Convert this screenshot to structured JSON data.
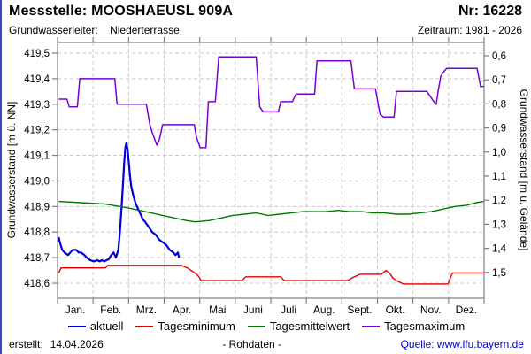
{
  "header": {
    "station_label": "Messstelle: MOOSHAEUSL 909A",
    "number_label": "Nr: 16228",
    "aquifer_label": "Grundwasserleiter:",
    "aquifer_value": "Niederterrasse",
    "period_label": "Zeitraum: 1981 - 2026"
  },
  "footer": {
    "created_label": "erstellt:",
    "created_date": "14.04.2026",
    "center_note": "- Rohdaten -",
    "source_label": "Quelle: www.lfu.bayern.de"
  },
  "colors": {
    "aktuell": "#0000dd",
    "tagesminimum": "#e60000",
    "tagesmittelwert": "#007a00",
    "tagesmaximum": "#7a00d6",
    "grid": "#c9c9c9",
    "plot_border": "#808080",
    "source_link": "#0000cc",
    "page_edge": "#4046c8"
  },
  "chart_data": {
    "type": "line",
    "title": "Messstelle: MOOSHAEUSL 909A (Nr: 16228)",
    "x_axis": {
      "months": [
        "Jan.",
        "Feb.",
        "Mrz.",
        "Apr.",
        "Mai",
        "Juni",
        "Juli",
        "Aug.",
        "Sept.",
        "Okt.",
        "Nov.",
        "Dez."
      ],
      "range_days": [
        0,
        365
      ],
      "grid": true
    },
    "left_axis": {
      "label": "Grundwasserstand [m ü. NN]",
      "tick_labels": [
        "419,5",
        "419,4",
        "419,3",
        "419,2",
        "419,1",
        "419,0",
        "418,9",
        "418,8",
        "418,7",
        "418,6"
      ],
      "tick_values": [
        419.5,
        419.4,
        419.3,
        419.2,
        419.1,
        419.0,
        418.9,
        418.8,
        418.7,
        418.6
      ],
      "range": [
        418.6,
        419.5
      ],
      "grid": true
    },
    "right_axis": {
      "label": "Grundwasserstand [m u. Gelände]",
      "tick_labels": [
        "0,6",
        "0,7",
        "0,8",
        "0,9",
        "1,0",
        "1,1",
        "1,2",
        "1,3",
        "1,4",
        "1,5"
      ],
      "grid": false
    },
    "legend_position": "bottom",
    "series": [
      {
        "name": "aktuell",
        "color": "#0000dd",
        "stroke_width": 2.2,
        "points": [
          [
            1,
            418.78
          ],
          [
            2,
            418.76
          ],
          [
            4,
            418.73
          ],
          [
            6,
            418.72
          ],
          [
            9,
            418.71
          ],
          [
            11,
            418.72
          ],
          [
            13,
            418.73
          ],
          [
            16,
            418.73
          ],
          [
            18,
            418.72
          ],
          [
            20,
            418.72
          ],
          [
            23,
            418.71
          ],
          [
            25,
            418.7
          ],
          [
            28,
            418.69
          ],
          [
            31,
            418.685
          ],
          [
            34,
            418.69
          ],
          [
            36,
            418.685
          ],
          [
            38,
            418.69
          ],
          [
            40,
            418.685
          ],
          [
            42,
            418.69
          ],
          [
            44,
            418.695
          ],
          [
            46,
            418.71
          ],
          [
            48,
            418.72
          ],
          [
            50,
            418.7
          ],
          [
            52,
            418.73
          ],
          [
            53,
            418.78
          ],
          [
            54,
            418.84
          ],
          [
            55,
            418.91
          ],
          [
            56,
            418.99
          ],
          [
            57,
            419.07
          ],
          [
            58,
            419.13
          ],
          [
            59,
            419.15
          ],
          [
            60,
            419.12
          ],
          [
            61,
            419.07
          ],
          [
            62,
            419.02
          ],
          [
            63,
            418.98
          ],
          [
            65,
            418.94
          ],
          [
            67,
            418.91
          ],
          [
            69,
            418.89
          ],
          [
            71,
            418.87
          ],
          [
            73,
            418.85
          ],
          [
            75,
            418.84
          ],
          [
            78,
            418.82
          ],
          [
            81,
            418.8
          ],
          [
            84,
            418.79
          ],
          [
            87,
            418.77
          ],
          [
            90,
            418.76
          ],
          [
            93,
            418.75
          ],
          [
            96,
            418.73
          ],
          [
            99,
            418.72
          ],
          [
            101,
            418.71
          ],
          [
            103,
            418.72
          ],
          [
            104,
            418.7
          ]
        ]
      },
      {
        "name": "Tagesminimum",
        "color": "#e60000",
        "stroke_width": 1.4,
        "points": [
          [
            1,
            418.64
          ],
          [
            3,
            418.66
          ],
          [
            41,
            418.66
          ],
          [
            43,
            418.67
          ],
          [
            106,
            418.67
          ],
          [
            111,
            418.66
          ],
          [
            116,
            418.645
          ],
          [
            119,
            418.635
          ],
          [
            121,
            418.625
          ],
          [
            123,
            418.61
          ],
          [
            158,
            418.61
          ],
          [
            161,
            418.625
          ],
          [
            191,
            418.625
          ],
          [
            194,
            418.61
          ],
          [
            248,
            418.61
          ],
          [
            254,
            418.625
          ],
          [
            259,
            418.635
          ],
          [
            277,
            418.635
          ],
          [
            281,
            418.65
          ],
          [
            284,
            418.64
          ],
          [
            287,
            418.62
          ],
          [
            290,
            418.61
          ],
          [
            296,
            418.597
          ],
          [
            334,
            418.597
          ],
          [
            338,
            418.64
          ],
          [
            365,
            418.64
          ]
        ]
      },
      {
        "name": "Tagesmittelwert",
        "color": "#007a00",
        "stroke_width": 1.4,
        "points": [
          [
            1,
            418.92
          ],
          [
            20,
            418.915
          ],
          [
            40,
            418.91
          ],
          [
            60,
            418.895
          ],
          [
            75,
            418.88
          ],
          [
            90,
            418.865
          ],
          [
            100,
            418.855
          ],
          [
            110,
            418.845
          ],
          [
            118,
            418.84
          ],
          [
            130,
            418.845
          ],
          [
            140,
            418.855
          ],
          [
            150,
            418.865
          ],
          [
            160,
            418.87
          ],
          [
            170,
            418.875
          ],
          [
            175,
            418.87
          ],
          [
            180,
            418.865
          ],
          [
            190,
            418.87
          ],
          [
            200,
            418.875
          ],
          [
            210,
            418.88
          ],
          [
            220,
            418.88
          ],
          [
            230,
            418.88
          ],
          [
            240,
            418.885
          ],
          [
            250,
            418.88
          ],
          [
            260,
            418.88
          ],
          [
            270,
            418.875
          ],
          [
            280,
            418.875
          ],
          [
            290,
            418.87
          ],
          [
            300,
            418.87
          ],
          [
            310,
            418.875
          ],
          [
            320,
            418.88
          ],
          [
            330,
            418.89
          ],
          [
            340,
            418.9
          ],
          [
            350,
            418.905
          ],
          [
            358,
            418.915
          ],
          [
            365,
            418.92
          ]
        ]
      },
      {
        "name": "Tagesmaximum",
        "color": "#7a00d6",
        "stroke_width": 1.5,
        "points": [
          [
            1,
            419.32
          ],
          [
            8,
            419.32
          ],
          [
            10,
            419.29
          ],
          [
            17,
            419.29
          ],
          [
            19,
            419.4
          ],
          [
            49,
            419.4
          ],
          [
            51,
            419.3
          ],
          [
            76,
            419.3
          ],
          [
            79,
            419.22
          ],
          [
            81,
            419.19
          ],
          [
            85,
            419.14
          ],
          [
            87,
            419.16
          ],
          [
            90,
            419.22
          ],
          [
            117,
            419.22
          ],
          [
            119,
            419.17
          ],
          [
            122,
            419.13
          ],
          [
            127,
            419.13
          ],
          [
            129,
            419.31
          ],
          [
            135,
            419.31
          ],
          [
            138,
            419.485
          ],
          [
            170,
            419.485
          ],
          [
            173,
            419.29
          ],
          [
            176,
            419.27
          ],
          [
            189,
            419.27
          ],
          [
            191,
            419.31
          ],
          [
            201,
            419.31
          ],
          [
            204,
            419.34
          ],
          [
            220,
            419.34
          ],
          [
            222,
            419.47
          ],
          [
            251,
            419.47
          ],
          [
            254,
            419.36
          ],
          [
            272,
            419.36
          ],
          [
            276,
            419.26
          ],
          [
            279,
            419.25
          ],
          [
            288,
            419.25
          ],
          [
            290,
            419.35
          ],
          [
            316,
            419.35
          ],
          [
            319,
            419.33
          ],
          [
            322,
            419.31
          ],
          [
            324,
            419.3
          ],
          [
            326,
            419.36
          ],
          [
            328,
            419.41
          ],
          [
            331,
            419.43
          ],
          [
            333,
            419.44
          ],
          [
            359,
            419.44
          ],
          [
            362,
            419.37
          ],
          [
            365,
            419.37
          ]
        ]
      }
    ]
  }
}
